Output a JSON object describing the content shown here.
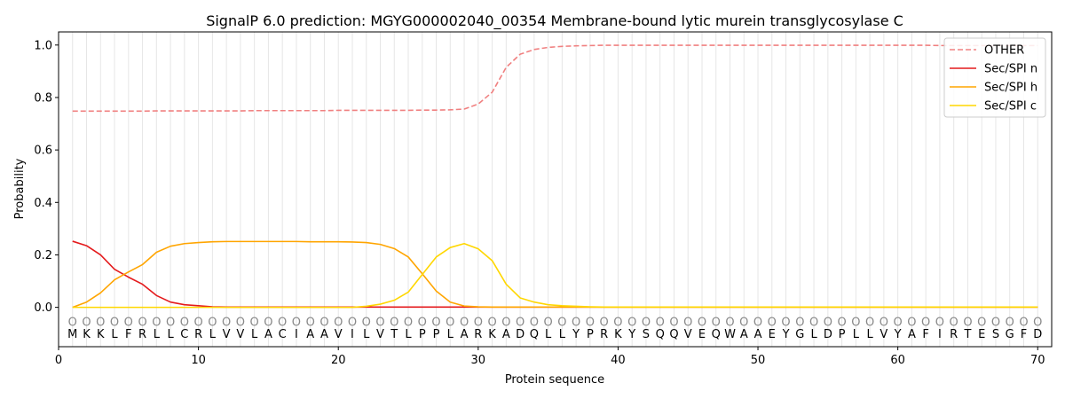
{
  "chart_data": {
    "type": "line",
    "title": "SignalP 6.0 prediction: MGYG000002040_00354 Membrane-bound lytic murein transglycosylase C",
    "xlabel": "Protein sequence",
    "ylabel": "Probability",
    "xlim": [
      0,
      71
    ],
    "ylim": [
      -0.15,
      1.05
    ],
    "xticks": [
      0,
      10,
      20,
      30,
      40,
      50,
      60,
      70
    ],
    "yticks": [
      0.0,
      0.2,
      0.4,
      0.6,
      0.8,
      1.0
    ],
    "ytick_labels": [
      "0.0",
      "0.2",
      "0.4",
      "0.6",
      "0.8",
      "1.0"
    ],
    "grid": "vertical lines at each residue",
    "legend_position": "top-right",
    "sequence": [
      "M",
      "K",
      "K",
      "L",
      "F",
      "R",
      "L",
      "L",
      "C",
      "R",
      "L",
      "V",
      "V",
      "L",
      "A",
      "C",
      "I",
      "A",
      "A",
      "V",
      "I",
      "L",
      "V",
      "T",
      "L",
      "P",
      "P",
      "L",
      "A",
      "R",
      "K",
      "A",
      "D",
      "Q",
      "L",
      "L",
      "Y",
      "P",
      "R",
      "K",
      "Y",
      "S",
      "Q",
      "Q",
      "V",
      "E",
      "Q",
      "W",
      "A",
      "A",
      "E",
      "Y",
      "G",
      "L",
      "D",
      "P",
      "L",
      "L",
      "V",
      "Y",
      "A",
      "F",
      "I",
      "R",
      "T",
      "E",
      "S",
      "G",
      "F",
      "D"
    ],
    "annotation_symbol": "O",
    "x": [
      1,
      2,
      3,
      4,
      5,
      6,
      7,
      8,
      9,
      10,
      11,
      12,
      13,
      14,
      15,
      16,
      17,
      18,
      19,
      20,
      21,
      22,
      23,
      24,
      25,
      26,
      27,
      28,
      29,
      30,
      31,
      32,
      33,
      34,
      35,
      36,
      37,
      38,
      39,
      40,
      41,
      42,
      43,
      44,
      45,
      46,
      47,
      48,
      49,
      50,
      51,
      52,
      53,
      54,
      55,
      56,
      57,
      58,
      59,
      60,
      61,
      62,
      63,
      64,
      65,
      66,
      67,
      68,
      69,
      70
    ],
    "series": [
      {
        "name": "OTHER",
        "color": "#f08080",
        "dash": "dashed",
        "values": [
          0.748,
          0.748,
          0.748,
          0.748,
          0.748,
          0.748,
          0.749,
          0.749,
          0.749,
          0.749,
          0.749,
          0.749,
          0.749,
          0.75,
          0.75,
          0.75,
          0.75,
          0.75,
          0.75,
          0.751,
          0.751,
          0.751,
          0.751,
          0.751,
          0.751,
          0.752,
          0.752,
          0.753,
          0.756,
          0.775,
          0.82,
          0.915,
          0.965,
          0.983,
          0.991,
          0.995,
          0.997,
          0.998,
          0.999,
          0.999,
          0.999,
          0.999,
          0.999,
          0.999,
          0.999,
          0.999,
          0.999,
          0.999,
          0.999,
          0.999,
          0.999,
          0.999,
          0.999,
          0.999,
          0.999,
          0.999,
          0.999,
          0.999,
          0.999,
          0.999,
          0.999,
          0.999,
          0.998,
          0.998,
          0.998,
          0.998,
          0.998,
          0.998,
          0.998,
          0.998
        ]
      },
      {
        "name": "Sec/SPI n",
        "color": "#e41a1c",
        "dash": "solid",
        "values": [
          0.252,
          0.235,
          0.2,
          0.145,
          0.115,
          0.088,
          0.045,
          0.02,
          0.01,
          0.006,
          0.002,
          0.001,
          0.001,
          0.001,
          0.001,
          0.001,
          0.001,
          0.001,
          0.001,
          0.001,
          0.001,
          0.001,
          0.001,
          0.001,
          0.001,
          0.001,
          0.001,
          0.001,
          0.001,
          0.001,
          0.001,
          0.001,
          0.001,
          0.001,
          0.001,
          0.001,
          0.001,
          0.001,
          0.001,
          0.001,
          0.001,
          0.001,
          0.001,
          0.001,
          0.001,
          0.001,
          0.001,
          0.001,
          0.001,
          0.001,
          0.001,
          0.001,
          0.001,
          0.001,
          0.001,
          0.001,
          0.001,
          0.001,
          0.001,
          0.001,
          0.001,
          0.001,
          0.001,
          0.001,
          0.001,
          0.001,
          0.001,
          0.001,
          0.001,
          0.001
        ]
      },
      {
        "name": "Sec/SPI h",
        "color": "#ffa500",
        "dash": "solid",
        "values": [
          0.0,
          0.02,
          0.055,
          0.105,
          0.135,
          0.163,
          0.21,
          0.233,
          0.243,
          0.247,
          0.25,
          0.251,
          0.251,
          0.251,
          0.251,
          0.251,
          0.251,
          0.25,
          0.25,
          0.25,
          0.249,
          0.247,
          0.24,
          0.224,
          0.192,
          0.128,
          0.062,
          0.02,
          0.005,
          0.002,
          0.001,
          0.001,
          0.001,
          0.001,
          0.001,
          0.001,
          0.001,
          0.001,
          0.001,
          0.001,
          0.001,
          0.001,
          0.001,
          0.001,
          0.001,
          0.001,
          0.001,
          0.001,
          0.001,
          0.001,
          0.001,
          0.001,
          0.001,
          0.001,
          0.001,
          0.001,
          0.001,
          0.001,
          0.001,
          0.001,
          0.001,
          0.001,
          0.001,
          0.001,
          0.001,
          0.001,
          0.001,
          0.001,
          0.001,
          0.001
        ]
      },
      {
        "name": "Sec/SPI c",
        "color": "#ffd700",
        "dash": "solid",
        "values": [
          0.0,
          0.0,
          0.0,
          0.0,
          0.0,
          0.0,
          0.0,
          0.0,
          0.0,
          0.0,
          0.0,
          0.0,
          0.0,
          0.0,
          0.0,
          0.0,
          0.0,
          0.0,
          0.0,
          0.0,
          0.0,
          0.004,
          0.012,
          0.027,
          0.058,
          0.125,
          0.192,
          0.228,
          0.243,
          0.223,
          0.178,
          0.088,
          0.036,
          0.02,
          0.01,
          0.006,
          0.004,
          0.002,
          0.001,
          0.001,
          0.001,
          0.001,
          0.001,
          0.001,
          0.001,
          0.001,
          0.001,
          0.001,
          0.001,
          0.001,
          0.001,
          0.001,
          0.001,
          0.001,
          0.001,
          0.001,
          0.001,
          0.001,
          0.001,
          0.001,
          0.001,
          0.001,
          0.001,
          0.001,
          0.001,
          0.001,
          0.001,
          0.001,
          0.001,
          0.001
        ]
      }
    ]
  }
}
